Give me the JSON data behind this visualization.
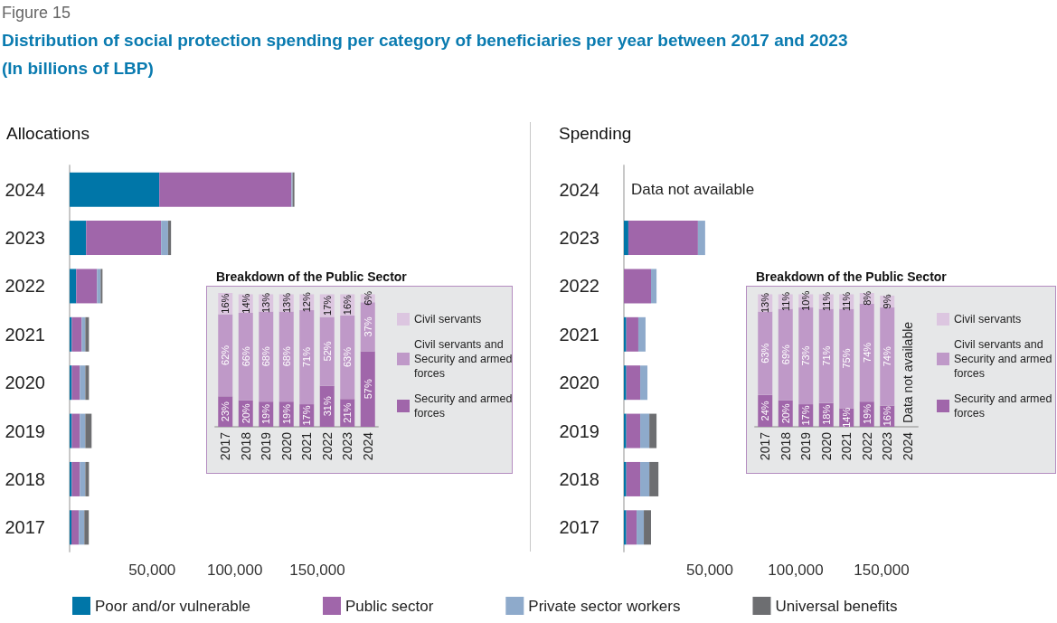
{
  "chart_data": [
    {
      "type": "bar",
      "title": "Allocations",
      "orientation": "horizontal",
      "stacked": true,
      "legend": "bottom",
      "annotations": [
        "Figure 15",
        "Distribution of social protection spending per category of beneficiaries per year between 2017 and 2023",
        "(In billions of LBP)"
      ],
      "categories": [
        "2024",
        "2023",
        "2022",
        "2021",
        "2020",
        "2019",
        "2018",
        "2017"
      ],
      "xlim": [
        0,
        150000
      ],
      "xticks": [
        {
          "value": 50000,
          "label": "50,000"
        },
        {
          "value": 100000,
          "label": "100,000"
        },
        {
          "value": 150000,
          "label": "150,000"
        }
      ],
      "series": [
        {
          "name": "Poor and/or vulnerable",
          "color": "#0076a8",
          "values": [
            54300,
            10000,
            4000,
            1300,
            1300,
            1300,
            1300,
            1100
          ]
        },
        {
          "name": "Public sector",
          "color": "#a066aa",
          "values": [
            80000,
            45400,
            12600,
            6000,
            4900,
            4900,
            4900,
            4500
          ]
        },
        {
          "name": "Private sector workers",
          "color": "#8eaacb",
          "values": [
            700,
            4200,
            2200,
            2200,
            3300,
            3300,
            3300,
            3300
          ]
        },
        {
          "name": "Universal benefits",
          "color": "#6d6e71",
          "values": [
            1100,
            1800,
            1100,
            2200,
            2200,
            3800,
            2200,
            2700
          ]
        }
      ]
    },
    {
      "type": "bar",
      "title": "Breakdown of the Public Sector",
      "stacked": true,
      "legend": "right",
      "tick_labels": "x",
      "categories": [
        "2017",
        "2018",
        "2019",
        "2020",
        "2021",
        "2022",
        "2023",
        "2024"
      ],
      "ylim": [
        0,
        101
      ],
      "series": [
        {
          "name": "Security and armed forces",
          "color": "#a066aa",
          "values": [
            23,
            20,
            19,
            19,
            17,
            31,
            21,
            57
          ],
          "value_labels": [
            "23%",
            "20%",
            "19%",
            "19%",
            "17%",
            "31%",
            "21%",
            "57%"
          ]
        },
        {
          "name": "Civil servants and Security and armed forces",
          "color": "#bf99c8",
          "values": [
            62,
            66,
            68,
            68,
            71,
            52,
            63,
            37
          ],
          "value_labels": [
            "62%",
            "66%",
            "68%",
            "68%",
            "71%",
            "52%",
            "63%",
            "37%"
          ]
        },
        {
          "name": "Civil servants",
          "color": "#dcc6e0",
          "values": [
            16,
            14,
            13,
            13,
            12,
            17,
            16,
            6
          ],
          "value_labels": [
            "16%",
            "14%",
            "13%",
            "13%",
            "12%",
            "17%",
            "16%",
            "6%"
          ]
        }
      ]
    },
    {
      "type": "bar",
      "title": "Spending",
      "orientation": "horizontal",
      "stacked": true,
      "annotations": [
        "Data not available"
      ],
      "categories": [
        "2024",
        "2023",
        "2022",
        "2021",
        "2020",
        "2019",
        "2018",
        "2017"
      ],
      "xlim": [
        0,
        150000
      ],
      "xticks": [
        {
          "value": 50000,
          "label": "50,000"
        },
        {
          "value": 100000,
          "label": "100,000"
        },
        {
          "value": 150000,
          "label": "150,000"
        }
      ],
      "series": [
        {
          "name": "Poor and/or vulnerable",
          "color": "#0076a8",
          "values": [
            null,
            2600,
            null,
            1400,
            1400,
            1400,
            1400,
            1400
          ]
        },
        {
          "name": "Public sector",
          "color": "#a066aa",
          "values": [
            null,
            40500,
            15800,
            7000,
            8100,
            8100,
            8100,
            6000
          ]
        },
        {
          "name": "Private sector workers",
          "color": "#8eaacb",
          "values": [
            null,
            4200,
            3200,
            4200,
            4200,
            5300,
            5300,
            4200
          ]
        },
        {
          "name": "Universal benefits",
          "color": "#6d6e71",
          "values": [
            null,
            null,
            null,
            null,
            null,
            4200,
            5300,
            4200
          ]
        }
      ]
    },
    {
      "type": "bar",
      "title": "Breakdown of the Public Sector",
      "stacked": true,
      "legend": "right",
      "tick_labels": "x",
      "annotations": [
        "Data not available"
      ],
      "categories": [
        "2017",
        "2018",
        "2019",
        "2020",
        "2021",
        "2022",
        "2023",
        "2024"
      ],
      "ylim": [
        0,
        101
      ],
      "series": [
        {
          "name": "Security and armed forces",
          "color": "#a066aa",
          "values": [
            24,
            20,
            17,
            18,
            14,
            19,
            16,
            null
          ],
          "value_labels": [
            "24%",
            "20%",
            "17%",
            "18%",
            "14%",
            "19%",
            "16%",
            null
          ]
        },
        {
          "name": "Civil servants and Security and armed forces",
          "color": "#bf99c8",
          "values": [
            63,
            69,
            73,
            71,
            75,
            74,
            74,
            null
          ],
          "value_labels": [
            "63%",
            "69%",
            "73%",
            "71%",
            "75%",
            "74%",
            "74%",
            null
          ]
        },
        {
          "name": "Civil servants",
          "color": "#dcc6e0",
          "values": [
            13,
            11,
            10,
            11,
            11,
            8,
            9,
            null
          ],
          "value_labels": [
            "13%",
            "11%",
            "10%",
            "11%",
            "11%",
            "8%",
            "9%",
            null
          ]
        }
      ]
    }
  ]
}
